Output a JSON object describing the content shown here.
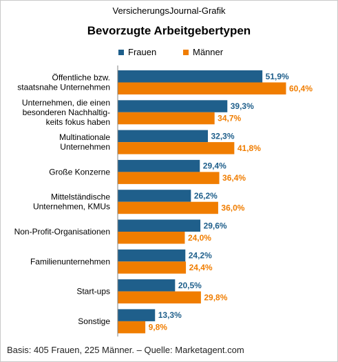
{
  "header": {
    "source_line": "VersicherungsJournal-Grafik"
  },
  "footer": {
    "note": "Basis: 405 Frauen, 225 Männer. – Quelle: Marketagent.com"
  },
  "colors": {
    "frauen": "#1f5f8b",
    "maenner": "#f07d00"
  },
  "chart_data": {
    "type": "bar",
    "orientation": "horizontal",
    "title": "Bevorzugte Arbeitgebertypen",
    "legend": {
      "placement": "top"
    },
    "grid": false,
    "xlim": [
      0,
      62
    ],
    "categories": [
      [
        "Öffentliche bzw.",
        "staatsnahe Unternehmen"
      ],
      [
        "Unternehmen, die einen",
        "besonderen Nachhaltig-",
        "keits fokus haben"
      ],
      [
        "Multinationale",
        "Unternehmen"
      ],
      [
        "Große Konzerne"
      ],
      [
        "Mittelständische",
        "Unternehmen, KMUs"
      ],
      [
        "Non-Profit-Organisationen"
      ],
      [
        "Familienunternehmen"
      ],
      [
        "Start-ups"
      ],
      [
        "Sonstige"
      ]
    ],
    "series": [
      {
        "name": "Frauen",
        "values": [
          51.9,
          39.3,
          32.3,
          29.4,
          26.2,
          29.6,
          24.2,
          20.5,
          13.3
        ],
        "labels": [
          "51,9%",
          "39,3%",
          "32,3%",
          "29,4%",
          "26,2%",
          "29,6%",
          "24,2%",
          "20,5%",
          "13,3%"
        ]
      },
      {
        "name": "Männer",
        "values": [
          60.4,
          34.7,
          41.8,
          36.4,
          36.0,
          24.0,
          24.4,
          29.8,
          9.8
        ],
        "labels": [
          "60,4%",
          "34,7%",
          "41,8%",
          "36,4%",
          "36,0%",
          "24,0%",
          "24,4%",
          "29,8%",
          "9,8%"
        ]
      }
    ]
  }
}
